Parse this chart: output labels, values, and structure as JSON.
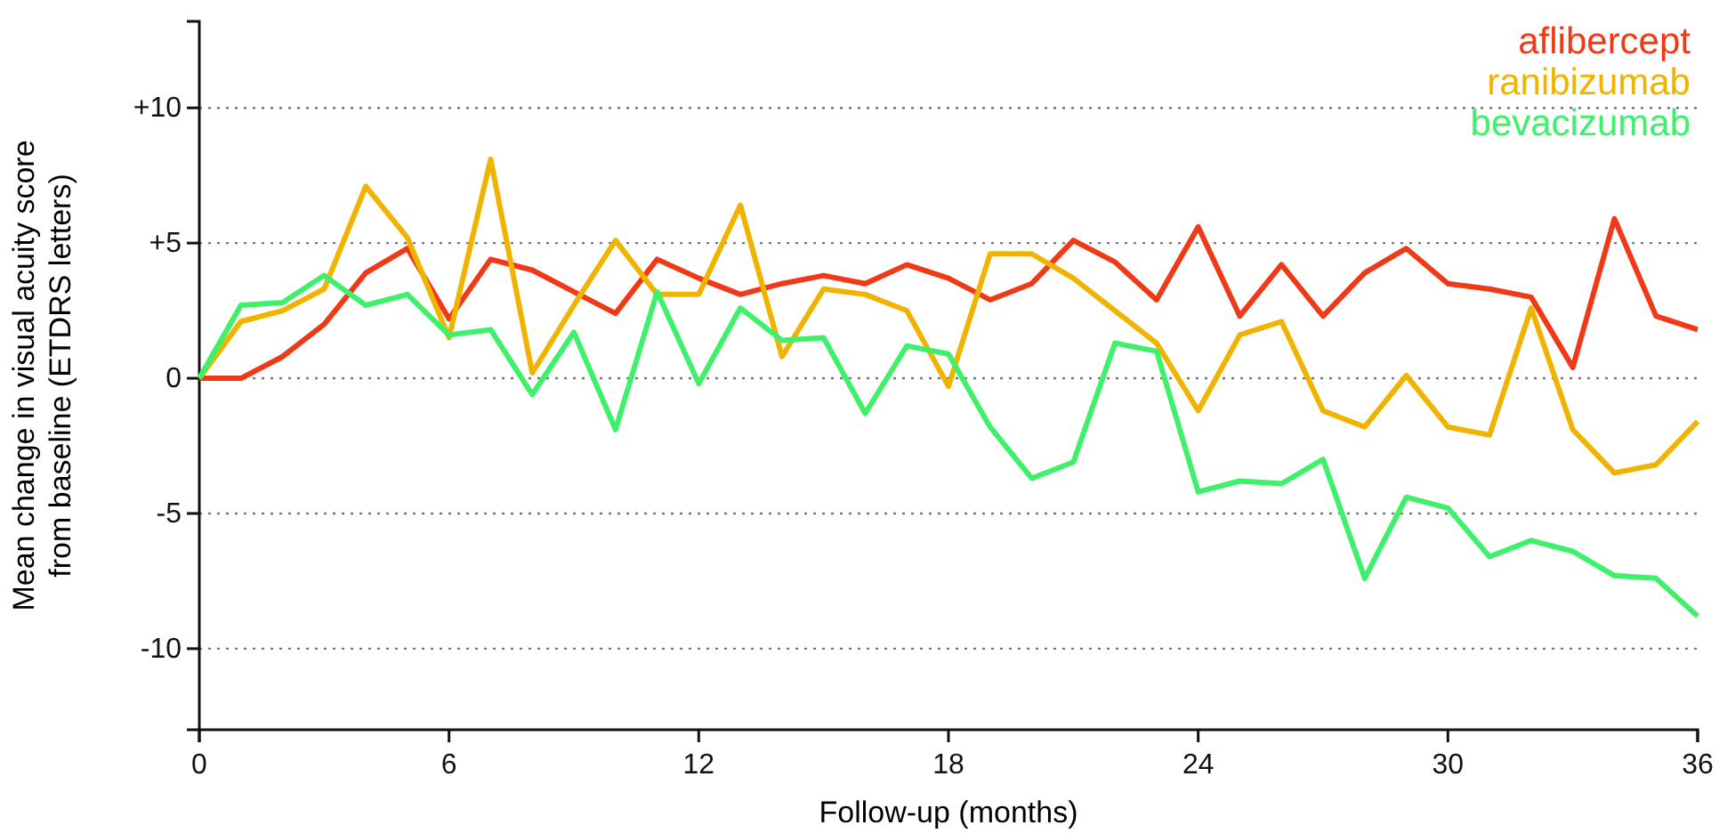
{
  "chart_data": {
    "type": "line",
    "xlabel": "Follow-up (months)",
    "ylabel": "Mean change in visual acuity score\nfrom baseline (ETDRS letters)",
    "x": [
      0,
      1,
      2,
      3,
      4,
      5,
      6,
      7,
      8,
      9,
      10,
      11,
      12,
      13,
      14,
      15,
      16,
      17,
      18,
      19,
      20,
      21,
      22,
      23,
      24,
      25,
      26,
      27,
      28,
      29,
      30,
      31,
      32,
      33,
      34,
      35,
      36
    ],
    "xlim": [
      0,
      36
    ],
    "xticks": [
      0,
      6,
      12,
      18,
      24,
      30,
      36
    ],
    "ylim": [
      -13,
      13.2
    ],
    "yticks": [
      {
        "value": 10,
        "label": "+10"
      },
      {
        "value": 5,
        "label": "+5"
      },
      0,
      -5,
      -10
    ],
    "grid": "y",
    "legend": "top right",
    "line_style": "solid",
    "marker": "none",
    "series": [
      {
        "name": "aflibercept",
        "color": "#f03a17",
        "values": [
          0,
          0,
          0.8,
          2,
          3.9,
          4.8,
          2.2,
          4.4,
          4,
          3.2,
          2.4,
          4.4,
          3.7,
          3.1,
          3.5,
          3.8,
          3.5,
          4.2,
          3.7,
          2.9,
          3.5,
          5.1,
          4.3,
          2.9,
          5.6,
          2.3,
          4.2,
          2.3,
          3.9,
          4.8,
          3.5,
          3.3,
          3,
          0.4,
          5.9,
          2.3,
          1.8
        ]
      },
      {
        "name": "ranibizumab",
        "color": "#f0b400",
        "values": [
          0,
          2.1,
          2.5,
          3.3,
          7.1,
          5.2,
          1.5,
          8.1,
          0.2,
          2.7,
          5.1,
          3.1,
          3.1,
          6.4,
          0.8,
          3.3,
          3.1,
          2.5,
          -0.3,
          4.6,
          4.6,
          3.7,
          2.5,
          1.3,
          -1.2,
          1.6,
          2.1,
          -1.2,
          -1.8,
          0.1,
          -1.8,
          -2.1,
          2.6,
          -1.9,
          -3.5,
          -3.2,
          -1.6
        ]
      },
      {
        "name": "bevacizumab",
        "color": "#3ef06a",
        "values": [
          0,
          2.7,
          2.8,
          3.8,
          2.7,
          3.1,
          1.6,
          1.8,
          -0.6,
          1.7,
          -1.9,
          3.2,
          -0.2,
          2.6,
          1.4,
          1.5,
          -1.3,
          1.2,
          0.9,
          -1.8,
          -3.7,
          -3.1,
          1.3,
          1.0,
          -4.2,
          -3.8,
          -3.9,
          -3,
          -7.4,
          -4.4,
          -4.8,
          -6.6,
          -6,
          -6.4,
          -7.3,
          -7.4,
          -8.8
        ]
      }
    ]
  }
}
